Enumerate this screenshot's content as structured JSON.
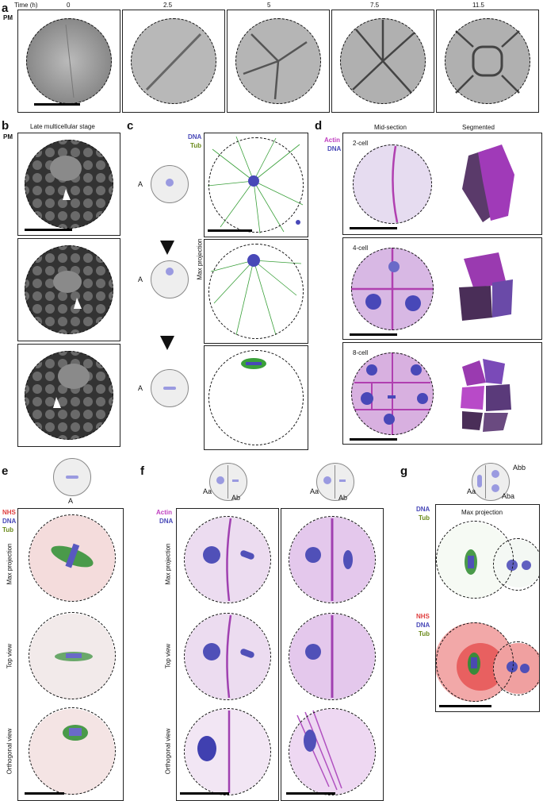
{
  "panel_a": {
    "letter": "a",
    "time_axis_label": "Time (h)",
    "row_label": "PM",
    "time_points": [
      "0",
      "2.5",
      "5",
      "7.5",
      "11.5"
    ]
  },
  "panel_b": {
    "letter": "b",
    "title": "Late multicellular stage",
    "row_label": "PM"
  },
  "panel_c": {
    "letter": "c",
    "channel_dna": "DNA",
    "channel_tub": "Tub",
    "cell_label": "A",
    "side_label": "Max projection"
  },
  "panel_d": {
    "letter": "d",
    "channel_actin": "Actin",
    "channel_dna": "DNA",
    "col_mid": "Mid-section",
    "col_seg": "Segmented",
    "rows": [
      "2-cell",
      "4-cell",
      "8-cell"
    ]
  },
  "panel_e": {
    "letter": "e",
    "cell_label": "A",
    "channel_nhs": "NHS",
    "channel_dna": "DNA",
    "channel_tub": "Tub",
    "views": [
      "Max projection",
      "Top view",
      "Orthogonal view"
    ]
  },
  "panel_f": {
    "letter": "f",
    "channel_actin": "Actin",
    "channel_dna": "DNA",
    "cell_labels": [
      "Aa",
      "Ab"
    ],
    "views": [
      "Max projection",
      "Top view",
      "Orthogonal view"
    ]
  },
  "panel_g": {
    "letter": "g",
    "cell_labels": [
      "Aa",
      "Abb",
      "Aba"
    ],
    "channel_dna": "DNA",
    "channel_tub": "Tub",
    "channel_nhs": "NHS",
    "title": "Max projection"
  },
  "colors": {
    "actin": "#c040c0",
    "dna": "#4848b8",
    "tub": "#2e8b2e",
    "nhs": "#e04040",
    "pm_gray": "#8a8a8a"
  }
}
